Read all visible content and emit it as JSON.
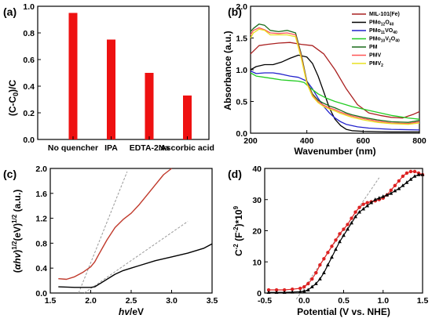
{
  "chart_data": [
    {
      "panel": "(a)",
      "type": "bar",
      "ylabel": "(C-C0)/C",
      "categories": [
        "No quencher",
        "IPA",
        "EDTA-2Na",
        "Ascorbic acid"
      ],
      "values": [
        0.95,
        0.75,
        0.5,
        0.33
      ],
      "ylim": [
        0.0,
        1.0
      ],
      "yticks": [
        "0.0",
        "0.2",
        "0.4",
        "0.6",
        "0.8",
        "1.0"
      ],
      "color": "#ee1111"
    },
    {
      "panel": "(b)",
      "type": "line",
      "xlabel": "Wavenumber (nm)",
      "ylabel": "Absorbance (a.u.)",
      "xlim": [
        200,
        800
      ],
      "ylim": [
        0.0,
        2.0
      ],
      "xticks": [
        "200",
        "400",
        "600",
        "800"
      ],
      "yticks": [
        "0.0",
        "0.5",
        "1.0",
        "1.5",
        "2.0"
      ],
      "legend_position": "top-right",
      "series": [
        {
          "name": "MIL-101(Fe)",
          "color": "#aa2020",
          "x": [
            200,
            230,
            260,
            300,
            340,
            380,
            420,
            460,
            500,
            540,
            580,
            620,
            660,
            700,
            740,
            780,
            800
          ],
          "y": [
            1.25,
            1.38,
            1.4,
            1.42,
            1.43,
            1.4,
            1.38,
            1.25,
            1.0,
            0.7,
            0.45,
            0.32,
            0.28,
            0.25,
            0.24,
            0.3,
            0.34
          ]
        },
        {
          "name": "PMo12O40",
          "color": "#000000",
          "x": [
            200,
            220,
            250,
            280,
            310,
            340,
            370,
            400,
            420,
            440,
            460,
            480,
            500,
            520,
            540,
            560,
            600,
            700,
            800
          ],
          "y": [
            1.0,
            1.05,
            1.08,
            1.08,
            1.12,
            1.18,
            1.23,
            1.2,
            1.1,
            0.9,
            0.65,
            0.4,
            0.22,
            0.12,
            0.06,
            0.04,
            0.03,
            0.02,
            0.02
          ]
        },
        {
          "name": "PMo11VO40",
          "color": "#2222cc",
          "x": [
            200,
            220,
            250,
            280,
            310,
            340,
            370,
            400,
            420,
            440,
            460,
            480,
            500,
            520,
            540,
            580,
            620,
            700,
            800
          ],
          "y": [
            0.98,
            0.94,
            0.95,
            0.95,
            0.93,
            0.9,
            0.88,
            0.82,
            0.7,
            0.55,
            0.42,
            0.32,
            0.24,
            0.18,
            0.14,
            0.1,
            0.08,
            0.06,
            0.05
          ]
        },
        {
          "name": "PMo10V2O40",
          "color": "#22cc22",
          "x": [
            200,
            220,
            250,
            280,
            310,
            340,
            370,
            390,
            410,
            440,
            470,
            500,
            530,
            560,
            600,
            640,
            700,
            760,
            800
          ],
          "y": [
            0.95,
            0.9,
            0.88,
            0.86,
            0.84,
            0.83,
            0.82,
            0.8,
            0.72,
            0.62,
            0.55,
            0.5,
            0.46,
            0.42,
            0.38,
            0.34,
            0.28,
            0.24,
            0.22
          ]
        },
        {
          "name": "PM",
          "color": "#1a6b1a",
          "x": [
            200,
            210,
            230,
            250,
            270,
            300,
            330,
            360,
            380,
            400,
            420,
            440,
            460,
            480,
            500,
            520,
            540,
            560,
            600,
            650,
            700,
            760,
            800
          ],
          "y": [
            1.6,
            1.65,
            1.72,
            1.7,
            1.62,
            1.6,
            1.62,
            1.58,
            1.25,
            0.82,
            0.62,
            0.52,
            0.47,
            0.43,
            0.4,
            0.36,
            0.32,
            0.29,
            0.25,
            0.21,
            0.18,
            0.17,
            0.2
          ]
        },
        {
          "name": "PMV",
          "color": "#ff5555",
          "x": [
            200,
            210,
            230,
            250,
            270,
            300,
            330,
            360,
            380,
            400,
            420,
            440,
            460,
            480,
            500,
            520,
            540,
            560,
            600,
            650,
            700,
            760,
            800
          ],
          "y": [
            1.55,
            1.62,
            1.66,
            1.63,
            1.58,
            1.57,
            1.58,
            1.55,
            1.22,
            0.8,
            0.6,
            0.5,
            0.44,
            0.4,
            0.37,
            0.33,
            0.3,
            0.27,
            0.23,
            0.19,
            0.16,
            0.15,
            0.18
          ]
        },
        {
          "name": "PMV2",
          "color": "#e8e020",
          "x": [
            200,
            210,
            230,
            250,
            270,
            300,
            330,
            360,
            380,
            400,
            420,
            440,
            460,
            480,
            500,
            520,
            540,
            560,
            600,
            650,
            700,
            760,
            800
          ],
          "y": [
            1.5,
            1.58,
            1.64,
            1.62,
            1.55,
            1.55,
            1.55,
            1.52,
            1.18,
            0.78,
            0.58,
            0.48,
            0.42,
            0.38,
            0.35,
            0.31,
            0.28,
            0.25,
            0.21,
            0.17,
            0.15,
            0.14,
            0.16
          ]
        }
      ]
    },
    {
      "panel": "(c)",
      "type": "line",
      "xlabel": "hv/eV",
      "ylabel": "(αhv)1/2(eV)1/2 (a.u.)",
      "xlim": [
        1.5,
        3.5
      ],
      "ylim": [
        0.0,
        2.0
      ],
      "xticks": [
        "1.5",
        "2.0",
        "2.5",
        "3.0",
        "3.5"
      ],
      "yticks": [
        "0.0",
        "0.4",
        "0.8",
        "1.2",
        "1.6",
        "2.0"
      ],
      "series": [
        {
          "color": "#c0392b",
          "x": [
            1.6,
            1.7,
            1.8,
            1.9,
            2.0,
            2.05,
            2.1,
            2.2,
            2.3,
            2.4,
            2.5,
            2.6,
            2.7,
            2.8,
            2.9,
            3.0
          ],
          "y": [
            0.23,
            0.22,
            0.26,
            0.33,
            0.42,
            0.5,
            0.62,
            0.85,
            1.05,
            1.18,
            1.28,
            1.42,
            1.58,
            1.74,
            1.9,
            2.0
          ]
        },
        {
          "color": "#000000",
          "x": [
            1.6,
            1.8,
            2.0,
            2.05,
            2.1,
            2.2,
            2.3,
            2.4,
            2.5,
            2.6,
            2.8,
            3.0,
            3.2,
            3.4,
            3.5
          ],
          "y": [
            0.1,
            0.09,
            0.09,
            0.1,
            0.14,
            0.22,
            0.3,
            0.36,
            0.4,
            0.44,
            0.52,
            0.58,
            0.64,
            0.72,
            0.79
          ]
        }
      ],
      "fit_lines": [
        {
          "color": "#999999",
          "x": [
            1.85,
            2.45
          ],
          "y": [
            0.0,
            1.95
          ]
        },
        {
          "color": "#999999",
          "x": [
            1.92,
            3.2
          ],
          "y": [
            0.0,
            1.15
          ]
        }
      ]
    },
    {
      "panel": "(d)",
      "type": "line",
      "xlabel": "Potential (V vs. NHE)",
      "ylabel": "C-2 (F-2)*109",
      "xlim": [
        -0.5,
        1.5
      ],
      "ylim": [
        0,
        40
      ],
      "xticks": [
        "-0.5",
        "0.0",
        "0.5",
        "1.0",
        "1.5"
      ],
      "yticks": [
        "0",
        "10",
        "20",
        "30",
        "40"
      ],
      "series": [
        {
          "color": "#dd2222",
          "marker": "circle",
          "x": [
            -0.45,
            -0.35,
            -0.25,
            -0.15,
            -0.05,
            0.0,
            0.05,
            0.1,
            0.15,
            0.2,
            0.25,
            0.3,
            0.35,
            0.4,
            0.45,
            0.5,
            0.55,
            0.6,
            0.65,
            0.7,
            0.75,
            0.8,
            0.85,
            0.9,
            0.95,
            1.0,
            1.05,
            1.1,
            1.15,
            1.2,
            1.25,
            1.3,
            1.35,
            1.4,
            1.45,
            1.5
          ],
          "y": [
            1,
            1,
            1,
            1.2,
            1.5,
            2,
            3,
            4.5,
            6.5,
            9,
            11,
            13,
            15,
            17,
            19,
            20.5,
            22,
            24,
            26,
            27.5,
            28.5,
            29,
            29.3,
            29.6,
            30,
            30.5,
            31.5,
            33,
            34.5,
            36,
            37.5,
            38.5,
            39,
            39,
            38.5,
            38
          ]
        },
        {
          "color": "#000000",
          "marker": "triangle",
          "x": [
            -0.45,
            -0.35,
            -0.25,
            -0.15,
            -0.05,
            0.0,
            0.05,
            0.1,
            0.15,
            0.2,
            0.25,
            0.3,
            0.35,
            0.4,
            0.45,
            0.5,
            0.55,
            0.6,
            0.65,
            0.7,
            0.75,
            0.8,
            0.85,
            0.9,
            0.95,
            1.0,
            1.05,
            1.1,
            1.15,
            1.2,
            1.25,
            1.3,
            1.35,
            1.4,
            1.45,
            1.5
          ],
          "y": [
            0.2,
            0.2,
            0.2,
            0.3,
            0.4,
            0.6,
            1,
            2,
            3,
            4.5,
            6.5,
            9,
            11.5,
            14,
            16.5,
            18.5,
            20.5,
            22.5,
            24.5,
            26,
            27,
            28,
            29,
            30,
            30.5,
            31,
            31.5,
            32,
            32.8,
            33.5,
            34.5,
            35.5,
            36.5,
            37.5,
            38,
            38
          ]
        }
      ],
      "fit_lines": [
        {
          "color": "#999999",
          "x": [
            -0.1,
            0.95
          ],
          "y": [
            -2,
            37
          ]
        }
      ]
    }
  ]
}
